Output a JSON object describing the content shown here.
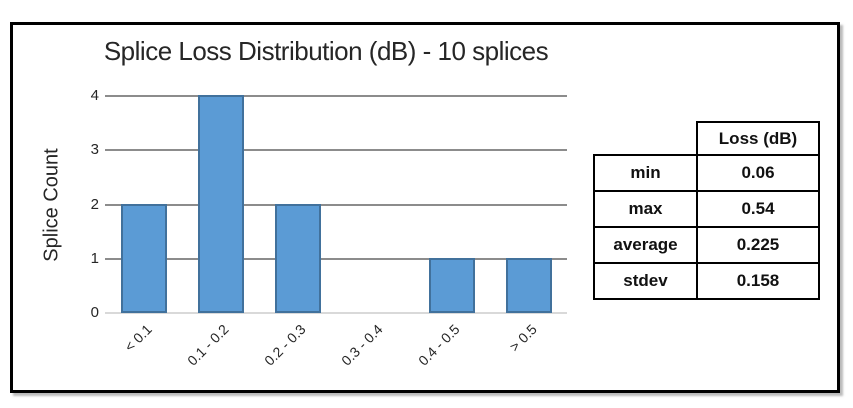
{
  "chart_data": {
    "type": "bar",
    "title": "Splice Loss Distribution (dB) - 10 splices",
    "xlabel": "",
    "ylabel": "Splice Count",
    "categories": [
      "< 0.1",
      "0.1 - 0.2",
      "0.2 - 0.3",
      "0.3 - 0.4",
      "0.4 - 0.5",
      "> 0.5"
    ],
    "values": [
      2,
      4,
      2,
      0,
      1,
      1
    ],
    "ylim": [
      0,
      4
    ],
    "yticks": [
      0,
      1,
      2,
      3,
      4
    ],
    "grid": true,
    "legend_position": "none",
    "n_splices": 10
  },
  "stats_table": {
    "value_column_header": "Loss (dB)",
    "rows": [
      {
        "label": "min",
        "value": "0.06"
      },
      {
        "label": "max",
        "value": "0.54"
      },
      {
        "label": "average",
        "value": "0.225"
      },
      {
        "label": "stdev",
        "value": "0.158"
      }
    ]
  },
  "colors": {
    "bar_fill": "#5b9bd5",
    "bar_border": "#41719c",
    "gridline": "#8c8c8c",
    "baseline": "#d9d9d9",
    "text": "#262626",
    "frame_border": "#000000"
  }
}
